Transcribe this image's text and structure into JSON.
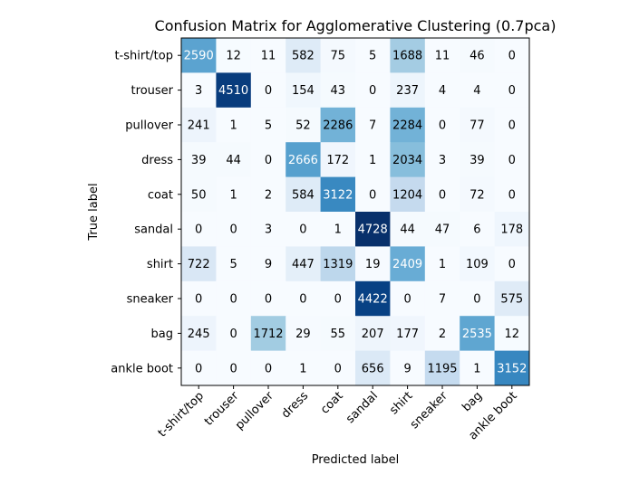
{
  "chart_data": {
    "type": "heatmap",
    "title": "Confusion Matrix for Agglomerative Clustering (0.7pca)",
    "xlabel": "Predicted label",
    "ylabel": "True label",
    "colormap": "Blues",
    "x_categories": [
      "t-shirt/top",
      "trouser",
      "pullover",
      "dress",
      "coat",
      "sandal",
      "shirt",
      "sneaker",
      "bag",
      "ankle boot"
    ],
    "y_categories": [
      "t-shirt/top",
      "trouser",
      "pullover",
      "dress",
      "coat",
      "sandal",
      "shirt",
      "sneaker",
      "bag",
      "ankle boot"
    ],
    "values": [
      [
        2590,
        12,
        11,
        582,
        75,
        5,
        1688,
        11,
        46,
        0
      ],
      [
        3,
        4510,
        0,
        154,
        43,
        0,
        237,
        4,
        4,
        0
      ],
      [
        241,
        1,
        5,
        52,
        2286,
        7,
        2284,
        0,
        77,
        0
      ],
      [
        39,
        44,
        0,
        2666,
        172,
        1,
        2034,
        3,
        39,
        0
      ],
      [
        50,
        1,
        2,
        584,
        3122,
        0,
        1204,
        0,
        72,
        0
      ],
      [
        0,
        0,
        3,
        0,
        1,
        4728,
        44,
        47,
        6,
        178
      ],
      [
        722,
        5,
        9,
        447,
        1319,
        19,
        2409,
        1,
        109,
        0
      ],
      [
        0,
        0,
        0,
        0,
        0,
        4422,
        0,
        7,
        0,
        575
      ],
      [
        245,
        0,
        1712,
        29,
        55,
        207,
        177,
        2,
        2535,
        12
      ],
      [
        0,
        0,
        0,
        1,
        0,
        656,
        9,
        1195,
        1,
        3152
      ]
    ]
  }
}
